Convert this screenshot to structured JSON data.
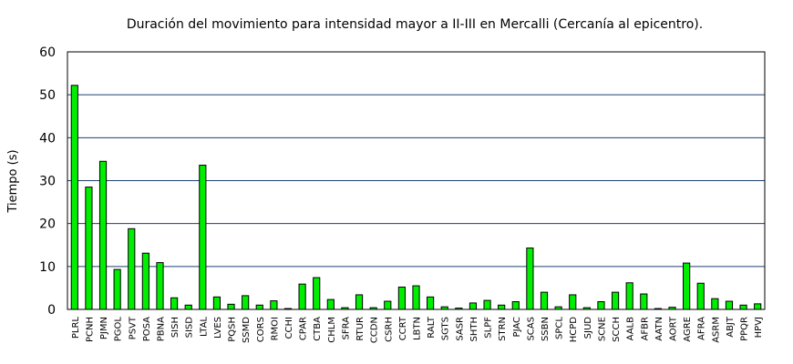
{
  "chart_data": {
    "type": "bar",
    "title": "Duración del movimiento para intensidad mayor a II-III en Mercalli (Cercanía al epicentro).",
    "xlabel": "",
    "ylabel": "Tiempo (s)",
    "ylim": [
      0,
      60
    ],
    "yticks": [
      "0",
      "10",
      "20",
      "30",
      "40",
      "50",
      "60"
    ],
    "grid": true,
    "bar_color": "#00ee00",
    "grid_color": "#1f3f6f",
    "categories": [
      "PLRL",
      "PCNH",
      "PJMN",
      "PGOL",
      "PSVT",
      "POSA",
      "PBNA",
      "SISH",
      "SISD",
      "LTAL",
      "LVES",
      "PQSH",
      "SSMD",
      "CORS",
      "RMOI",
      "CCHI",
      "CPAR",
      "CTBA",
      "CHLM",
      "SFRA",
      "RTUR",
      "CCDN",
      "CSRH",
      "CCRT",
      "LBTN",
      "RALT",
      "SGTS",
      "SASR",
      "SHTH",
      "SLPF",
      "STRN",
      "PJAC",
      "SCAS",
      "SSBN",
      "SPCL",
      "HCPD",
      "SJUD",
      "SCNE",
      "SCCH",
      "AALB",
      "AFBR",
      "AATN",
      "AORT",
      "AGRE",
      "AFRA",
      "ASRM",
      "ABJT",
      "PPQR",
      "HPVJ"
    ],
    "values": [
      52.2,
      28.5,
      34.5,
      9.3,
      18.8,
      13.1,
      10.9,
      2.7,
      1.0,
      33.6,
      2.9,
      1.2,
      3.2,
      1.0,
      2.0,
      0.2,
      5.9,
      7.4,
      2.3,
      0.4,
      3.4,
      0.4,
      1.9,
      5.2,
      5.5,
      2.9,
      0.6,
      0.3,
      1.5,
      2.1,
      1.0,
      1.8,
      14.3,
      4.0,
      0.6,
      3.4,
      0.4,
      1.8,
      4.0,
      6.2,
      3.6,
      0.2,
      0.5,
      10.8,
      6.1,
      2.5,
      1.9,
      1.0,
      1.3
    ]
  }
}
